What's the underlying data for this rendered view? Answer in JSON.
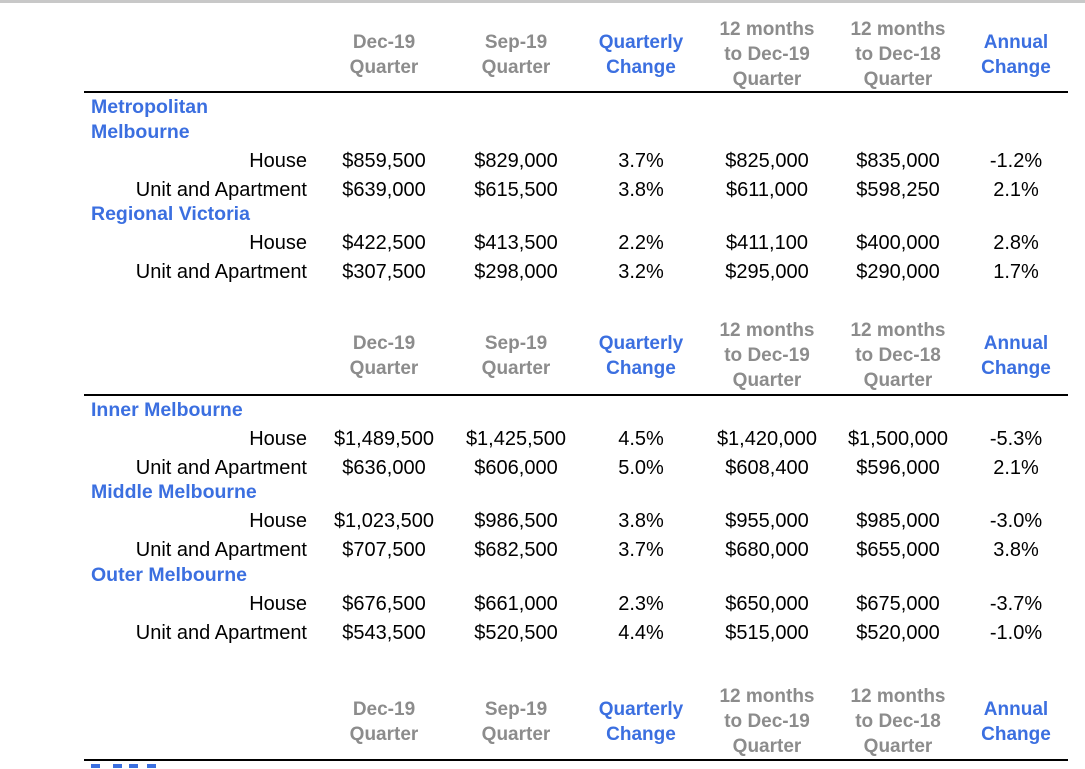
{
  "header": {
    "col1": [
      "Dec-19",
      "Quarter"
    ],
    "col2": [
      "Sep-19",
      "Quarter"
    ],
    "col3": [
      "Quarterly",
      "Change"
    ],
    "col4": [
      "12 months",
      "to Dec-19",
      "Quarter"
    ],
    "col5": [
      "12 months",
      "to Dec-18",
      "Quarter"
    ],
    "col6": [
      "Annual",
      "Change"
    ]
  },
  "colors": {
    "accent_blue": "#3b6fe0",
    "header_gray": "#8c8c8c",
    "text": "#000000"
  },
  "tables": [
    {
      "sections": [
        {
          "title": [
            "Metropolitan",
            "Melbourne"
          ],
          "rows": [
            {
              "label": "House",
              "values": [
                "$859,500",
                "$829,000",
                "3.7%",
                "$825,000",
                "$835,000",
                "-1.2%"
              ]
            },
            {
              "label": "Unit and Apartment",
              "values": [
                "$639,000",
                "$615,500",
                "3.8%",
                "$611,000",
                "$598,250",
                "2.1%"
              ]
            }
          ]
        },
        {
          "title": [
            "Regional Victoria"
          ],
          "rows": [
            {
              "label": "House",
              "values": [
                "$422,500",
                "$413,500",
                "2.2%",
                "$411,100",
                "$400,000",
                "2.8%"
              ]
            },
            {
              "label": "Unit and Apartment",
              "values": [
                "$307,500",
                "$298,000",
                "3.2%",
                "$295,000",
                "$290,000",
                "1.7%"
              ]
            }
          ]
        }
      ]
    },
    {
      "sections": [
        {
          "title": [
            "Inner Melbourne"
          ],
          "rows": [
            {
              "label": "House",
              "values": [
                "$1,489,500",
                "$1,425,500",
                "4.5%",
                "$1,420,000",
                "$1,500,000",
                "-5.3%"
              ]
            },
            {
              "label": "Unit and Apartment",
              "values": [
                "$636,000",
                "$606,000",
                "5.0%",
                "$608,400",
                "$596,000",
                "2.1%"
              ]
            }
          ]
        },
        {
          "title": [
            "Middle Melbourne"
          ],
          "rows": [
            {
              "label": "House",
              "values": [
                "$1,023,500",
                "$986,500",
                "3.8%",
                "$955,000",
                "$985,000",
                "-3.0%"
              ]
            },
            {
              "label": "Unit and Apartment",
              "values": [
                "$707,500",
                "$682,500",
                "3.7%",
                "$680,000",
                "$655,000",
                "3.8%"
              ]
            }
          ]
        },
        {
          "title": [
            "Outer Melbourne"
          ],
          "rows": [
            {
              "label": "House",
              "values": [
                "$676,500",
                "$661,000",
                "2.3%",
                "$650,000",
                "$675,000",
                "-3.7%"
              ]
            },
            {
              "label": "Unit and Apartment",
              "values": [
                "$543,500",
                "$520,500",
                "4.4%",
                "$515,000",
                "$520,000",
                "-1.0%"
              ]
            }
          ]
        }
      ]
    },
    {
      "sections": []
    }
  ]
}
